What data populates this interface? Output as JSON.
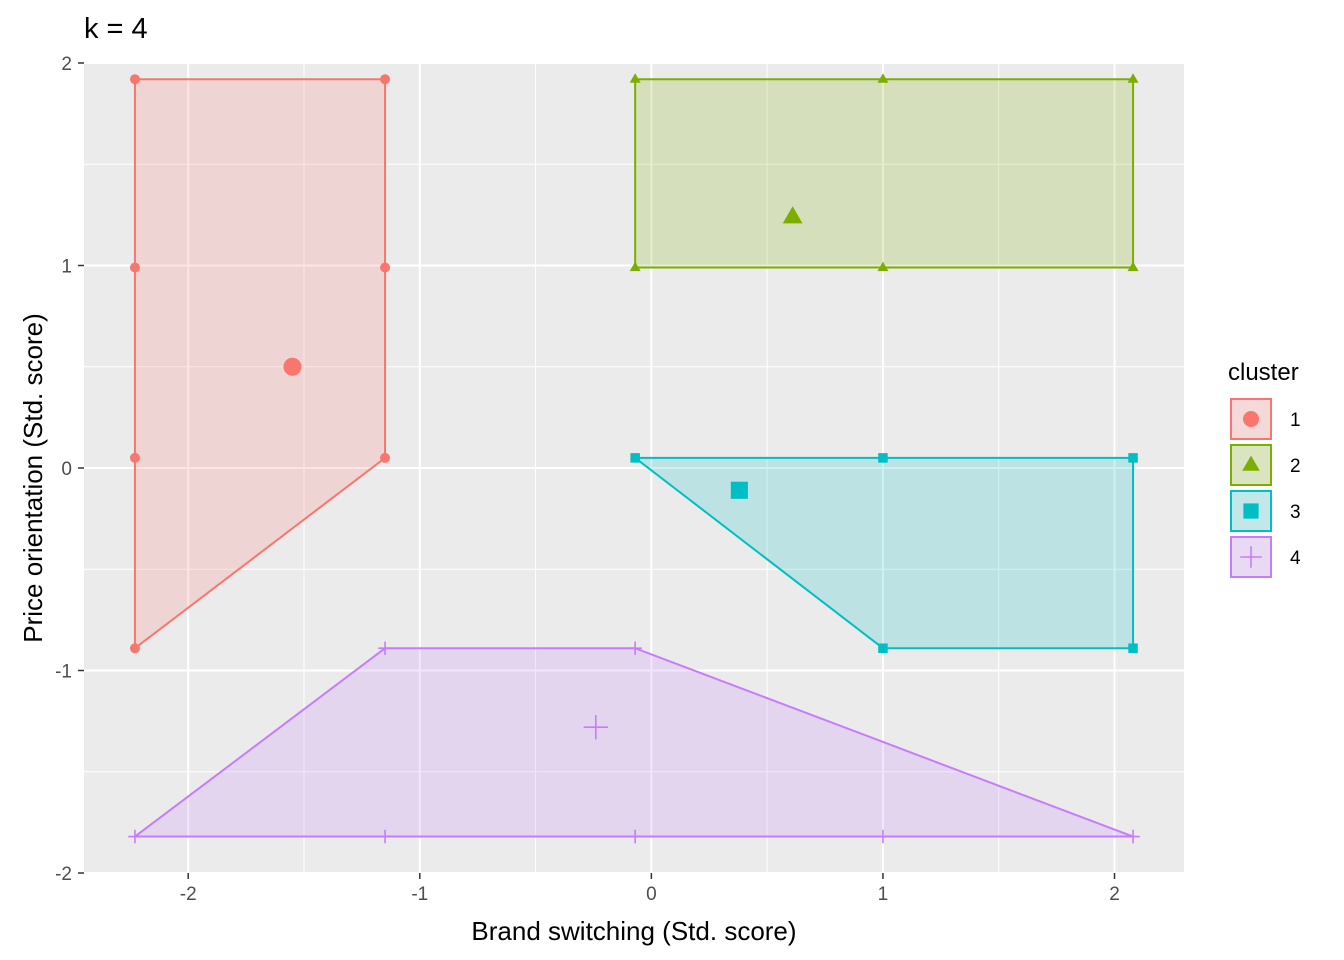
{
  "chart_data": {
    "type": "scatter",
    "title": "k = 4",
    "xlabel": "Brand switching (Std. score)",
    "ylabel": "Price orientation (Std. score)",
    "xlim": [
      -2.45,
      2.3
    ],
    "ylim": [
      -2.0,
      2.0
    ],
    "xticks": [
      -2,
      -1,
      0,
      1,
      2
    ],
    "xtick_labels": [
      "-2",
      "-1",
      "0",
      "1",
      "2"
    ],
    "yticks": [
      -2,
      -1,
      0,
      1,
      2
    ],
    "ytick_labels": [
      "-2",
      "-1",
      "0",
      "1",
      "2"
    ],
    "x_minor": [
      -1.5,
      -0.5,
      0.5,
      1.5
    ],
    "y_minor": [
      -1.5,
      -0.5,
      0.5,
      1.5
    ],
    "grid": true,
    "legend_title": "cluster",
    "legend_position": "right",
    "series": [
      {
        "name": "1",
        "color": "#F8766D",
        "shape": "circle",
        "points": [
          {
            "x": -2.23,
            "y": 1.92
          },
          {
            "x": -1.15,
            "y": 1.92
          },
          {
            "x": -2.23,
            "y": 0.99
          },
          {
            "x": -1.15,
            "y": 0.99
          },
          {
            "x": -2.23,
            "y": 0.05
          },
          {
            "x": -1.15,
            "y": 0.05
          },
          {
            "x": -2.23,
            "y": -0.89
          }
        ],
        "hull": [
          {
            "x": -2.23,
            "y": 1.92
          },
          {
            "x": -1.15,
            "y": 1.92
          },
          {
            "x": -1.15,
            "y": 0.05
          },
          {
            "x": -2.23,
            "y": -0.89
          }
        ],
        "center": {
          "x": -1.55,
          "y": 0.5
        }
      },
      {
        "name": "2",
        "color": "#7CAE00",
        "shape": "triangle",
        "points": [
          {
            "x": -0.07,
            "y": 1.92
          },
          {
            "x": 1.0,
            "y": 1.92
          },
          {
            "x": 2.08,
            "y": 1.92
          },
          {
            "x": -0.07,
            "y": 0.99
          },
          {
            "x": 1.0,
            "y": 0.99
          },
          {
            "x": 2.08,
            "y": 0.99
          }
        ],
        "hull": [
          {
            "x": -0.07,
            "y": 1.92
          },
          {
            "x": 2.08,
            "y": 1.92
          },
          {
            "x": 2.08,
            "y": 0.99
          },
          {
            "x": -0.07,
            "y": 0.99
          }
        ],
        "center": {
          "x": 0.61,
          "y": 1.24
        }
      },
      {
        "name": "3",
        "color": "#00BFC4",
        "shape": "square",
        "points": [
          {
            "x": -0.07,
            "y": 0.05
          },
          {
            "x": 1.0,
            "y": 0.05
          },
          {
            "x": 2.08,
            "y": 0.05
          },
          {
            "x": 1.0,
            "y": -0.89
          },
          {
            "x": 2.08,
            "y": -0.89
          }
        ],
        "hull": [
          {
            "x": -0.07,
            "y": 0.05
          },
          {
            "x": 2.08,
            "y": 0.05
          },
          {
            "x": 2.08,
            "y": -0.89
          },
          {
            "x": 1.0,
            "y": -0.89
          }
        ],
        "center": {
          "x": 0.38,
          "y": -0.11
        }
      },
      {
        "name": "4",
        "color": "#C77CFF",
        "shape": "plus",
        "points": [
          {
            "x": -1.15,
            "y": -0.89
          },
          {
            "x": -0.07,
            "y": -0.89
          },
          {
            "x": -2.23,
            "y": -1.82
          },
          {
            "x": -1.15,
            "y": -1.82
          },
          {
            "x": -0.07,
            "y": -1.82
          },
          {
            "x": 1.0,
            "y": -1.82
          },
          {
            "x": 2.08,
            "y": -1.82
          }
        ],
        "hull": [
          {
            "x": -1.15,
            "y": -0.89
          },
          {
            "x": -0.07,
            "y": -0.89
          },
          {
            "x": 2.08,
            "y": -1.82
          },
          {
            "x": -2.23,
            "y": -1.82
          }
        ],
        "center": {
          "x": -0.24,
          "y": -1.28
        }
      }
    ]
  }
}
